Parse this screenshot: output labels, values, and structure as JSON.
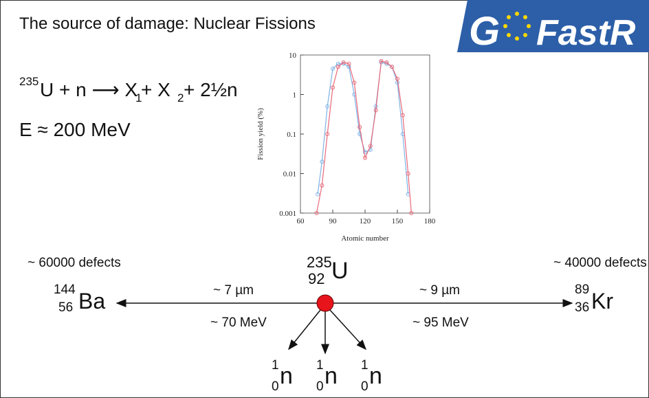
{
  "title": "The source of damage: Nuclear Fissions",
  "logo": {
    "left": "G",
    "right": "FastR"
  },
  "equation": {
    "mass": 235,
    "a": "U + n ⟶ X",
    "sub1": 1,
    "b": " + X",
    "sub2": 2,
    "c": " + 2½n"
  },
  "energy": "E ≈ 200 MeV",
  "chart_data": {
    "type": "line",
    "xlabel": "Atomic number",
    "ylabel": "Fission yield (%)",
    "xlim": [
      60,
      180
    ],
    "xticks": [
      60,
      90,
      120,
      150,
      180
    ],
    "ylim": [
      0.001,
      10
    ],
    "yticks": [
      0.001,
      0.01,
      0.1,
      1,
      10
    ],
    "log_y": true,
    "series": [
      {
        "color": "#7fb2e5",
        "x": [
          76,
          80,
          85,
          90,
          95,
          100,
          105,
          110,
          115,
          120,
          125,
          130,
          135,
          140,
          145,
          150,
          155,
          160
        ],
        "values": [
          0.003,
          0.02,
          0.5,
          4.5,
          6,
          6,
          5,
          1,
          0.1,
          0.035,
          0.04,
          0.5,
          6.5,
          6,
          5,
          2,
          0.1,
          0.003
        ]
      },
      {
        "color": "#e86878",
        "x": [
          75,
          80,
          85,
          90,
          95,
          100,
          105,
          110,
          115,
          120,
          125,
          130,
          135,
          140,
          145,
          150,
          155,
          160,
          163
        ],
        "values": [
          0.001,
          0.005,
          0.1,
          1.5,
          5,
          6.5,
          6,
          2,
          0.15,
          0.025,
          0.05,
          0.4,
          7,
          6.5,
          5,
          2.5,
          0.3,
          0.01,
          0.001
        ]
      }
    ]
  },
  "defects_left": "~ 60000 defects",
  "defects_right": "~ 40000 defects",
  "nuclides": {
    "ba": {
      "mass": 144,
      "atomic": 56,
      "symbol": "Ba"
    },
    "u": {
      "mass": 235,
      "atomic": 92,
      "symbol": "U"
    },
    "kr": {
      "mass": 89,
      "atomic": 36,
      "symbol": "Kr"
    },
    "n": {
      "mass": 1,
      "atomic": 0,
      "symbol": "n"
    }
  },
  "left_range": "~ 7 µm",
  "left_energy": "~ 70 MeV",
  "right_range": "~ 9 µm",
  "right_energy": "~ 95 MeV"
}
